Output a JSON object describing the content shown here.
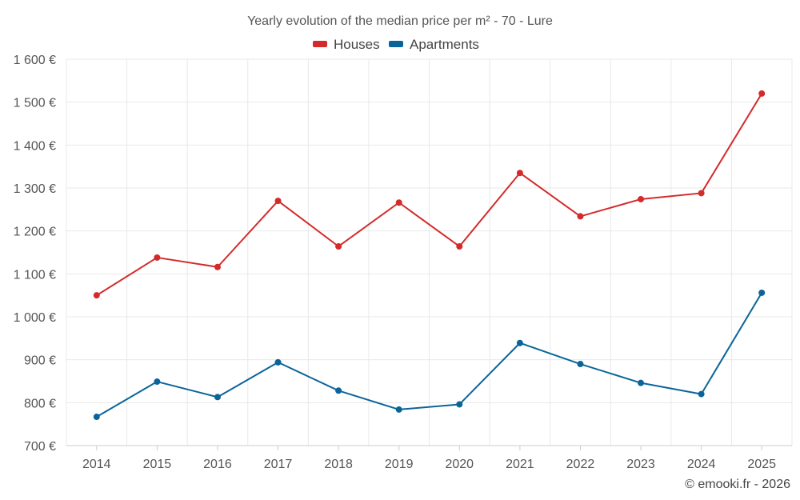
{
  "chart_data": {
    "type": "line",
    "title": "Yearly evolution of the median price per m² - 70 - Lure",
    "categories": [
      "2014",
      "2015",
      "2016",
      "2017",
      "2018",
      "2019",
      "2020",
      "2021",
      "2022",
      "2023",
      "2024",
      "2025"
    ],
    "series": [
      {
        "name": "Houses",
        "color": "#d42a2a",
        "values": [
          1050,
          1138,
          1116,
          1270,
          1164,
          1266,
          1164,
          1335,
          1234,
          1274,
          1288,
          1520
        ]
      },
      {
        "name": "Apartments",
        "color": "#0b6499",
        "values": [
          767,
          849,
          813,
          894,
          828,
          784,
          796,
          939,
          890,
          846,
          820,
          1056
        ]
      }
    ],
    "ylim": [
      700,
      1600
    ],
    "yticks": [
      700,
      800,
      900,
      1000,
      1100,
      1200,
      1300,
      1400,
      1500,
      1600
    ],
    "ytick_labels": [
      "700 €",
      "800 €",
      "900 €",
      "1 000 €",
      "1 100 €",
      "1 200 €",
      "1 300 €",
      "1 400 €",
      "1 500 €",
      "1 600 €"
    ],
    "grid": true,
    "legend_position": "top-center",
    "credit": "© emooki.fr - 2026"
  }
}
